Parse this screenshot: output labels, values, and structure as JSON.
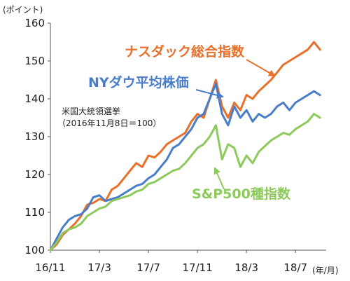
{
  "chart_data": {
    "type": "line",
    "y_unit_label": "(ポイント)",
    "x_unit_label": "(年/月)",
    "note_lines": [
      "米国大統領選挙",
      "（2016年11月8日＝100）"
    ],
    "ylim": [
      100,
      160
    ],
    "yticks": [
      100,
      110,
      120,
      130,
      140,
      150,
      160
    ],
    "x_categories": [
      "16/11",
      "17/3",
      "17/7",
      "17/11",
      "18/3",
      "18/7"
    ],
    "xlim": [
      0,
      22.5
    ],
    "grid": false,
    "series": [
      {
        "name": "ナスダック総合指数",
        "color": "#E8702A",
        "x": [
          0,
          0.5,
          1,
          1.5,
          2,
          2.5,
          3,
          3.5,
          4,
          4.5,
          5,
          5.5,
          6,
          6.5,
          7,
          7.5,
          8,
          8.5,
          9,
          9.5,
          10,
          10.5,
          11,
          11.5,
          12,
          12.5,
          13,
          13.5,
          14,
          14.5,
          15,
          15.5,
          16,
          16.5,
          17,
          17.5,
          18,
          18.5,
          19,
          19.5,
          20,
          20.5,
          21,
          21.5,
          22
        ],
        "y": [
          100,
          101.5,
          104,
          105.5,
          107,
          109,
          112,
          112.5,
          113.5,
          113,
          116,
          117,
          119,
          121,
          123,
          122,
          125,
          124.5,
          126,
          128,
          129,
          130,
          131,
          134,
          136,
          135,
          140,
          145,
          138,
          135,
          139,
          137,
          141,
          140,
          142,
          143.5,
          145,
          147,
          149,
          150,
          151,
          152,
          153,
          155,
          153
        ]
      },
      {
        "name": "NYダウ平均株価",
        "color": "#4A7DC9",
        "x": [
          0,
          0.5,
          1,
          1.5,
          2,
          2.5,
          3,
          3.5,
          4,
          4.5,
          5,
          5.5,
          6,
          6.5,
          7,
          7.5,
          8,
          8.5,
          9,
          9.5,
          10,
          10.5,
          11,
          11.5,
          12,
          12.5,
          13,
          13.5,
          14,
          14.5,
          15,
          15.5,
          16,
          16.5,
          17,
          17.5,
          18,
          18.5,
          19,
          19.5,
          20,
          20.5,
          21,
          21.5,
          22
        ],
        "y": [
          100,
          103,
          106,
          108,
          109,
          109.5,
          111,
          114,
          114.5,
          113,
          113.5,
          114,
          115,
          116,
          117,
          117.5,
          119,
          120,
          122,
          124,
          127,
          128,
          130,
          132,
          135,
          136,
          140,
          144,
          136,
          133,
          138,
          135,
          137,
          134,
          136,
          135,
          136,
          138,
          139,
          137,
          139,
          140,
          141,
          142,
          141
        ]
      },
      {
        "name": "S&P500種指数",
        "color": "#8DC95B",
        "x": [
          0,
          0.5,
          1,
          1.5,
          2,
          2.5,
          3,
          3.5,
          4,
          4.5,
          5,
          5.5,
          6,
          6.5,
          7,
          7.5,
          8,
          8.5,
          9,
          9.5,
          10,
          10.5,
          11,
          11.5,
          12,
          12.5,
          13,
          13.5,
          14,
          14.5,
          15,
          15.5,
          16,
          16.5,
          17,
          17.5,
          18,
          18.5,
          19,
          19.5,
          20,
          20.5,
          21,
          21.5,
          22
        ],
        "y": [
          100,
          102,
          104.5,
          105.5,
          106,
          107,
          109,
          110,
          111,
          111.5,
          113,
          113.5,
          114,
          114.5,
          115.5,
          116,
          117.5,
          118,
          119,
          120,
          121,
          121.5,
          123,
          125,
          127,
          128,
          130,
          133,
          124,
          128,
          127,
          122,
          125,
          123,
          126,
          127.5,
          129,
          130,
          131,
          130.5,
          132,
          133,
          134,
          136,
          135
        ]
      }
    ],
    "annotations": [
      {
        "text": "ナスダック総合指数",
        "series": "ナスダック総合指数",
        "color": "#E8702A"
      },
      {
        "text": "NYダウ平均株価",
        "series": "NYダウ平均株価",
        "color": "#4A7DC9"
      },
      {
        "text": "S&P500種指数",
        "series": "S&P500種指数",
        "color": "#8DC95B"
      }
    ]
  }
}
